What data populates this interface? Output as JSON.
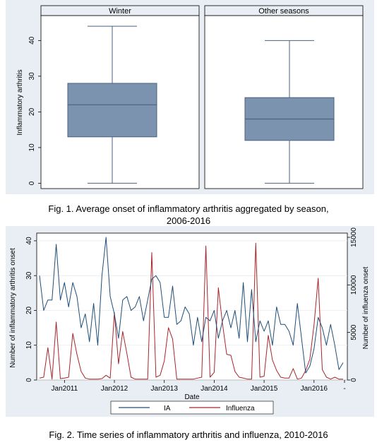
{
  "figure1": {
    "caption_line1": "Fig. 1.  Average onset of inflammatory arthritis aggregated by season,",
    "caption_line2": "2006-2016",
    "chart_data": {
      "type": "box",
      "panels": [
        {
          "label": "Winter",
          "min": 0,
          "q1": 13,
          "median": 22,
          "q3": 28,
          "max": 44
        },
        {
          "label": "Other seasons",
          "min": 0,
          "q1": 12,
          "median": 18,
          "q3": 24,
          "max": 40
        }
      ],
      "ylabel": "Inflammatory arthritis",
      "ylim": [
        -1.5,
        47
      ],
      "yticks": [
        "0",
        "10",
        "20",
        "30",
        "40"
      ],
      "colors": {
        "box": "#7c93af",
        "box_edge": "#4a6280",
        "frame_bg": "#e8eef4"
      }
    }
  },
  "figure2": {
    "caption": "Fig. 2. Time series of inflammatory arthritis and influenza, 2010-2016",
    "chart_data": {
      "type": "line",
      "xlabel": "Date",
      "ylabel_left": "Number of inflammatory arthritis onset",
      "ylabel_right": "Number of influenza onset",
      "xticks": [
        "Jan2011",
        "Jan2012",
        "Jan2013",
        "Jan2014",
        "Jan2015",
        "Jan2016",
        "-"
      ],
      "yticks_left": [
        "0",
        "10",
        "20",
        "30",
        "40"
      ],
      "yticks_right": [
        "0",
        "5000",
        "10000",
        "15000"
      ],
      "ylim_left": [
        0,
        41
      ],
      "ylim_right": [
        0,
        15000
      ],
      "x_start": "2010-07",
      "series": [
        {
          "name": "IA",
          "axis": "left",
          "color": "#1f4e79",
          "values": [
            30,
            20,
            23,
            23,
            39,
            23,
            28,
            21,
            28,
            24,
            15,
            19,
            11,
            22,
            10,
            30,
            41,
            24,
            19,
            12,
            23,
            24,
            20,
            21,
            24,
            17,
            23,
            29,
            30,
            28,
            18,
            18,
            27,
            16,
            17,
            21,
            19,
            10,
            18,
            11,
            18,
            17,
            20,
            12,
            17,
            20,
            15,
            20,
            12,
            28,
            11,
            26,
            11,
            17,
            14,
            17,
            10,
            21,
            16,
            16,
            14,
            10,
            22,
            12,
            2,
            4,
            9,
            18,
            15,
            10,
            16,
            10,
            3,
            5
          ]
        },
        {
          "name": "Influenza",
          "axis": "right",
          "color": "#a8252b",
          "values": [
            200,
            300,
            3400,
            100,
            6100,
            150,
            200,
            300,
            4900,
            2700,
            900,
            200,
            100,
            100,
            100,
            150,
            500,
            200,
            7100,
            1700,
            5100,
            2800,
            300,
            100,
            100,
            100,
            100,
            13400,
            300,
            500,
            2000,
            5500,
            4300,
            100,
            100,
            100,
            100,
            100,
            200,
            300,
            14100,
            300,
            800,
            9700,
            5900,
            2700,
            2600,
            900,
            300,
            200,
            100,
            100,
            14400,
            300,
            400,
            4700,
            2100,
            1000,
            300,
            200,
            200,
            1200,
            100,
            200,
            1000,
            2200,
            5800,
            10700,
            1100,
            300,
            100,
            300,
            100,
            100
          ]
        }
      ],
      "legend": [
        "IA",
        "Influenza"
      ],
      "legend_position": "bottom"
    }
  }
}
